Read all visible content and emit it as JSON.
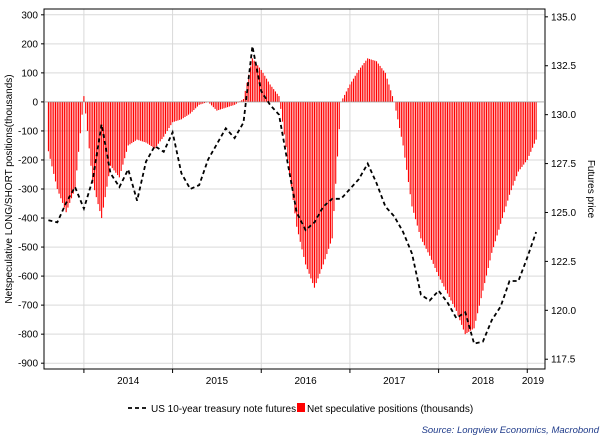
{
  "chart_data": {
    "type": "bar+line",
    "y_left": {
      "label": "Netspeculative LONG/SHORT positions(thousands)",
      "ticks": [
        300,
        200,
        100,
        0,
        -100,
        -200,
        -300,
        -400,
        -500,
        -600,
        -700,
        -800,
        -900
      ],
      "range": [
        -920,
        320
      ]
    },
    "y_right": {
      "label": "Futures price",
      "ticks": [
        "135.0",
        "132.5",
        "130.0",
        "127.5",
        "125.0",
        "122.5",
        "120.0",
        "117.5"
      ],
      "range": [
        117.0,
        135.4
      ]
    },
    "x_axis": {
      "ticks": [
        "2014",
        "2015",
        "2016",
        "2017",
        "2018",
        "2019"
      ],
      "range": [
        2013.55,
        2019.2
      ]
    },
    "grid": true,
    "series": [
      {
        "name": "Net speculative positions (thousands)",
        "type": "bar",
        "color": "#ff0000",
        "x": [
          2013.6,
          2013.7,
          2013.8,
          2013.9,
          2014.0,
          2014.1,
          2014.2,
          2014.3,
          2014.4,
          2014.5,
          2014.6,
          2014.7,
          2014.8,
          2014.9,
          2015.0,
          2015.1,
          2015.2,
          2015.3,
          2015.4,
          2015.5,
          2015.6,
          2015.7,
          2015.8,
          2015.9,
          2016.0,
          2016.1,
          2016.2,
          2016.3,
          2016.4,
          2016.5,
          2016.6,
          2016.7,
          2016.8,
          2016.9,
          2017.0,
          2017.1,
          2017.2,
          2017.3,
          2017.4,
          2017.5,
          2017.6,
          2017.7,
          2017.8,
          2017.9,
          2018.0,
          2018.1,
          2018.2,
          2018.3,
          2018.4,
          2018.5,
          2018.6,
          2018.7,
          2018.8,
          2018.9,
          2019.0,
          2019.1
        ],
        "values": [
          -170,
          -300,
          -380,
          -300,
          20,
          -280,
          -400,
          -220,
          -260,
          -150,
          -130,
          -140,
          -160,
          -120,
          -70,
          -60,
          -40,
          -10,
          0,
          -30,
          -20,
          -10,
          10,
          150,
          110,
          60,
          20,
          -200,
          -430,
          -560,
          -640,
          -560,
          -470,
          0,
          60,
          110,
          150,
          140,
          100,
          0,
          -150,
          -360,
          -470,
          -530,
          -600,
          -660,
          -720,
          -800,
          -780,
          -650,
          -520,
          -420,
          -320,
          -240,
          -200,
          -130
        ]
      },
      {
        "name": "US 10-year treasury note futures",
        "type": "line",
        "style": "dashed",
        "color": "#000000",
        "x": [
          2013.6,
          2013.7,
          2013.8,
          2013.9,
          2014.0,
          2014.1,
          2014.2,
          2014.3,
          2014.4,
          2014.5,
          2014.6,
          2014.7,
          2014.8,
          2014.9,
          2015.0,
          2015.1,
          2015.2,
          2015.3,
          2015.4,
          2015.5,
          2015.6,
          2015.7,
          2015.8,
          2015.9,
          2016.0,
          2016.1,
          2016.2,
          2016.3,
          2016.4,
          2016.5,
          2016.6,
          2016.7,
          2016.8,
          2016.9,
          2017.0,
          2017.1,
          2017.2,
          2017.3,
          2017.4,
          2017.5,
          2017.6,
          2017.7,
          2017.8,
          2017.9,
          2018.0,
          2018.1,
          2018.2,
          2018.3,
          2018.4,
          2018.5,
          2018.6,
          2018.7,
          2018.8,
          2018.9,
          2019.0,
          2019.1
        ],
        "values": [
          124.6,
          124.5,
          125.5,
          126.3,
          125.2,
          126.7,
          129.5,
          127.0,
          126.3,
          127.2,
          125.6,
          127.6,
          128.4,
          128.1,
          129.1,
          127.0,
          126.2,
          126.4,
          127.7,
          128.5,
          129.3,
          128.8,
          129.6,
          133.5,
          131.2,
          130.5,
          130.0,
          127.5,
          125.0,
          124.1,
          124.5,
          125.3,
          125.7,
          125.7,
          126.2,
          126.7,
          127.5,
          126.5,
          125.3,
          124.8,
          124.0,
          122.9,
          120.8,
          120.5,
          121.0,
          120.4,
          119.6,
          119.9,
          118.3,
          118.4,
          119.5,
          120.2,
          121.5,
          121.5,
          122.7,
          124.0
        ]
      }
    ],
    "legend": {
      "line": "US 10-year treasury note futures",
      "bar": "Net speculative positions (thousands)"
    },
    "source": "Source: Longview Economics, Macrobond"
  }
}
